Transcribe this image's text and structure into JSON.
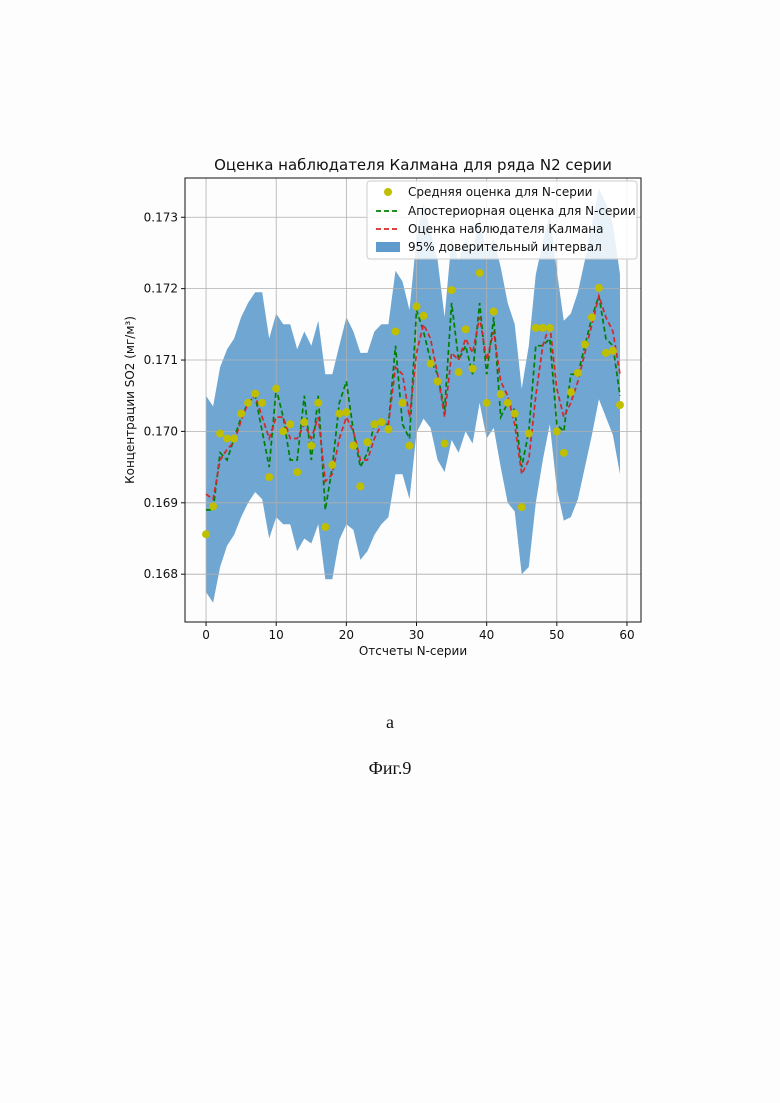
{
  "chart_data": {
    "type": "line",
    "title": "Оценка наблюдателя Калмана для ряда N2 серии",
    "xlabel": "Отсчеты N-серии",
    "ylabel": "Концентрации SO2 (мг/м³)",
    "xlim": [
      -3,
      62
    ],
    "ylim": [
      0.16733,
      0.17355
    ],
    "xticks": [
      0,
      10,
      20,
      30,
      40,
      50,
      60
    ],
    "yticks": [
      0.168,
      0.169,
      0.17,
      0.171,
      0.172,
      0.173
    ],
    "ytick_labels": [
      "0.168",
      "0.169",
      "0.170",
      "0.171",
      "0.172",
      "0.173"
    ],
    "grid": true,
    "legend_position": "top-right",
    "colors": {
      "points": "#bfbf00",
      "aposteriori": "#008000",
      "kalman": "#d62728",
      "band": "#5f9ccd"
    },
    "x": [
      0,
      1,
      2,
      3,
      4,
      5,
      6,
      7,
      8,
      9,
      10,
      11,
      12,
      13,
      14,
      15,
      16,
      17,
      18,
      19,
      20,
      21,
      22,
      23,
      24,
      25,
      26,
      27,
      28,
      29,
      30,
      31,
      32,
      33,
      34,
      35,
      36,
      37,
      38,
      39,
      40,
      41,
      42,
      43,
      44,
      45,
      46,
      47,
      48,
      49,
      50,
      51,
      52,
      53,
      54,
      55,
      56,
      57,
      58,
      59
    ],
    "series": [
      {
        "name": "Средняя оценка для N-серии",
        "kind": "scatter",
        "values": [
          0.16856,
          0.16895,
          0.16997,
          0.1699,
          0.1699,
          0.17025,
          0.1704,
          0.17053,
          0.1704,
          0.16936,
          0.1706,
          0.17,
          0.1701,
          0.16943,
          0.17013,
          0.1698,
          0.1704,
          0.16866,
          0.16953,
          0.17025,
          0.17027,
          0.1698,
          0.16923,
          0.16985,
          0.1701,
          0.17013,
          0.17003,
          0.1714,
          0.1704,
          0.1698,
          0.17175,
          0.17162,
          0.17095,
          0.1707,
          0.16983,
          0.17198,
          0.17083,
          0.17143,
          0.17088,
          0.17222,
          0.1704,
          0.17168,
          0.17052,
          0.1704,
          0.17025,
          0.16894,
          0.16997,
          0.17145,
          0.17145,
          0.17145,
          0.17,
          0.1697,
          0.17055,
          0.17082,
          0.17122,
          0.1716,
          0.17201,
          0.1711,
          0.17113,
          0.17037
        ]
      },
      {
        "name": "Апостериорная оценка для N-серии",
        "kind": "line",
        "values": [
          0.1689,
          0.1689,
          0.1697,
          0.1696,
          0.1699,
          0.1702,
          0.1704,
          0.1705,
          0.17,
          0.1695,
          0.1706,
          0.1702,
          0.1696,
          0.1696,
          0.1705,
          0.1696,
          0.1705,
          0.1689,
          0.1695,
          0.1704,
          0.1707,
          0.17,
          0.1695,
          0.1697,
          0.1701,
          0.1701,
          0.1701,
          0.1712,
          0.1701,
          0.1699,
          0.1717,
          0.1714,
          0.171,
          0.1708,
          0.1703,
          0.1718,
          0.171,
          0.1712,
          0.1708,
          0.1718,
          0.1708,
          0.1716,
          0.1702,
          0.1704,
          0.1703,
          0.1695,
          0.17,
          0.1712,
          0.1712,
          0.1713,
          0.1701,
          0.17,
          0.1708,
          0.1708,
          0.1712,
          0.1716,
          0.1719,
          0.1713,
          0.1712,
          0.1705
        ]
      },
      {
        "name": "Оценка наблюдателя Калмана",
        "kind": "line",
        "values": [
          0.16912,
          0.16905,
          0.1696,
          0.16975,
          0.16985,
          0.17015,
          0.1704,
          0.1705,
          0.1702,
          0.1699,
          0.1702,
          0.1702,
          0.1699,
          0.1699,
          0.1701,
          0.1699,
          0.1702,
          0.1693,
          0.1694,
          0.1699,
          0.1702,
          0.17,
          0.1696,
          0.1696,
          0.1699,
          0.1701,
          0.1701,
          0.1709,
          0.1708,
          0.1702,
          0.1711,
          0.1715,
          0.1713,
          0.1708,
          0.1702,
          0.1711,
          0.171,
          0.1713,
          0.1711,
          0.1716,
          0.171,
          0.1714,
          0.1707,
          0.1705,
          0.1701,
          0.1694,
          0.1696,
          0.1705,
          0.1712,
          0.1715,
          0.1706,
          0.1702,
          0.1704,
          0.1707,
          0.1711,
          0.1715,
          0.1719,
          0.1716,
          0.1714,
          0.1708
        ]
      },
      {
        "name": "95% доверительный интервал",
        "kind": "band",
        "lower": [
          0.16775,
          0.1676,
          0.1681,
          0.1684,
          0.16855,
          0.1688,
          0.169,
          0.16915,
          0.16905,
          0.1685,
          0.1688,
          0.1687,
          0.1687,
          0.16832,
          0.1685,
          0.16843,
          0.1687,
          0.16793,
          0.16793,
          0.16848,
          0.1687,
          0.16862,
          0.1682,
          0.16832,
          0.16855,
          0.1687,
          0.1688,
          0.1694,
          0.1694,
          0.16905,
          0.16998,
          0.17018,
          0.17005,
          0.1696,
          0.16943,
          0.16988,
          0.1697,
          0.17,
          0.16983,
          0.1704,
          0.1699,
          0.17005,
          0.1695,
          0.169,
          0.16888,
          0.168,
          0.1681,
          0.169,
          0.1696,
          0.1701,
          0.1692,
          0.16875,
          0.1688,
          0.16905,
          0.1695,
          0.16995,
          0.17045,
          0.1702,
          0.16995,
          0.1694
        ],
        "upper": [
          0.1705,
          0.17035,
          0.1709,
          0.17115,
          0.1713,
          0.1716,
          0.1718,
          0.17195,
          0.17195,
          0.1713,
          0.17165,
          0.1715,
          0.1715,
          0.17115,
          0.1714,
          0.1712,
          0.17155,
          0.1708,
          0.1708,
          0.1712,
          0.1716,
          0.1714,
          0.1711,
          0.1711,
          0.1714,
          0.1715,
          0.1715,
          0.17225,
          0.1721,
          0.1717,
          0.1727,
          0.1732,
          0.1728,
          0.1724,
          0.1716,
          0.1727,
          0.1724,
          0.1727,
          0.1725,
          0.173,
          0.1725,
          0.1727,
          0.1723,
          0.1718,
          0.1715,
          0.1706,
          0.1712,
          0.1722,
          0.17265,
          0.17305,
          0.17225,
          0.17155,
          0.17165,
          0.17195,
          0.1724,
          0.1729,
          0.1734,
          0.1732,
          0.1729,
          0.1722
        ]
      }
    ]
  },
  "captions": {
    "sub": "а",
    "figure": "Фиг.9"
  }
}
